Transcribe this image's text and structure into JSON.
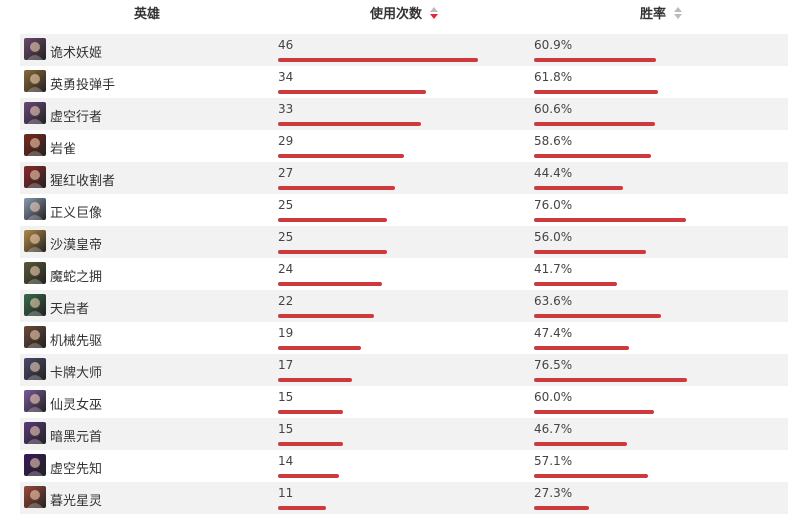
{
  "header": {
    "hero": "英雄",
    "uses": "使用次数",
    "winrate": "胜率"
  },
  "rows": [
    {
      "name": "诡术妖姬",
      "uses": "46",
      "winrate": "60.9%",
      "uses_value": 46,
      "winrate_value": 60.9,
      "avatar_color": "#6a4a6a"
    },
    {
      "name": "英勇投弹手",
      "uses": "34",
      "winrate": "61.8%",
      "uses_value": 34,
      "winrate_value": 61.8,
      "avatar_color": "#8a6a3a"
    },
    {
      "name": "虚空行者",
      "uses": "33",
      "winrate": "60.6%",
      "uses_value": 33,
      "winrate_value": 60.6,
      "avatar_color": "#6a4a7a"
    },
    {
      "name": "岩雀",
      "uses": "29",
      "winrate": "58.6%",
      "uses_value": 29,
      "winrate_value": 58.6,
      "avatar_color": "#7a2a1a"
    },
    {
      "name": "猩红收割者",
      "uses": "27",
      "winrate": "44.4%",
      "uses_value": 27,
      "winrate_value": 44.4,
      "avatar_color": "#8a2a2a"
    },
    {
      "name": "正义巨像",
      "uses": "25",
      "winrate": "76.0%",
      "uses_value": 25,
      "winrate_value": 76.0,
      "avatar_color": "#8a9ab0"
    },
    {
      "name": "沙漠皇帝",
      "uses": "25",
      "winrate": "56.0%",
      "uses_value": 25,
      "winrate_value": 56.0,
      "avatar_color": "#b08a4a"
    },
    {
      "name": "魔蛇之拥",
      "uses": "24",
      "winrate": "41.7%",
      "uses_value": 24,
      "winrate_value": 41.7,
      "avatar_color": "#5a5a3a"
    },
    {
      "name": "天启者",
      "uses": "22",
      "winrate": "63.6%",
      "uses_value": 22,
      "winrate_value": 63.6,
      "avatar_color": "#3a6a4a"
    },
    {
      "name": "机械先驱",
      "uses": "19",
      "winrate": "47.4%",
      "uses_value": 19,
      "winrate_value": 47.4,
      "avatar_color": "#6a4a3a"
    },
    {
      "name": "卡牌大师",
      "uses": "17",
      "winrate": "76.5%",
      "uses_value": 17,
      "winrate_value": 76.5,
      "avatar_color": "#4a4a6a"
    },
    {
      "name": "仙灵女巫",
      "uses": "15",
      "winrate": "60.0%",
      "uses_value": 15,
      "winrate_value": 60.0,
      "avatar_color": "#7a5a9a"
    },
    {
      "name": "暗黑元首",
      "uses": "15",
      "winrate": "46.7%",
      "uses_value": 15,
      "winrate_value": 46.7,
      "avatar_color": "#5a3a7a"
    },
    {
      "name": "虚空先知",
      "uses": "14",
      "winrate": "57.1%",
      "uses_value": 14,
      "winrate_value": 57.1,
      "avatar_color": "#3a1a5a"
    },
    {
      "name": "暮光星灵",
      "uses": "11",
      "winrate": "27.3%",
      "uses_value": 11,
      "winrate_value": 27.3,
      "avatar_color": "#9a4a3a"
    }
  ],
  "colors": {
    "bar": "#cc3a3f",
    "row_stripe": "#f2f2f2",
    "sort_active": "#d0303a",
    "sort_inactive": "#bbbbbb"
  }
}
